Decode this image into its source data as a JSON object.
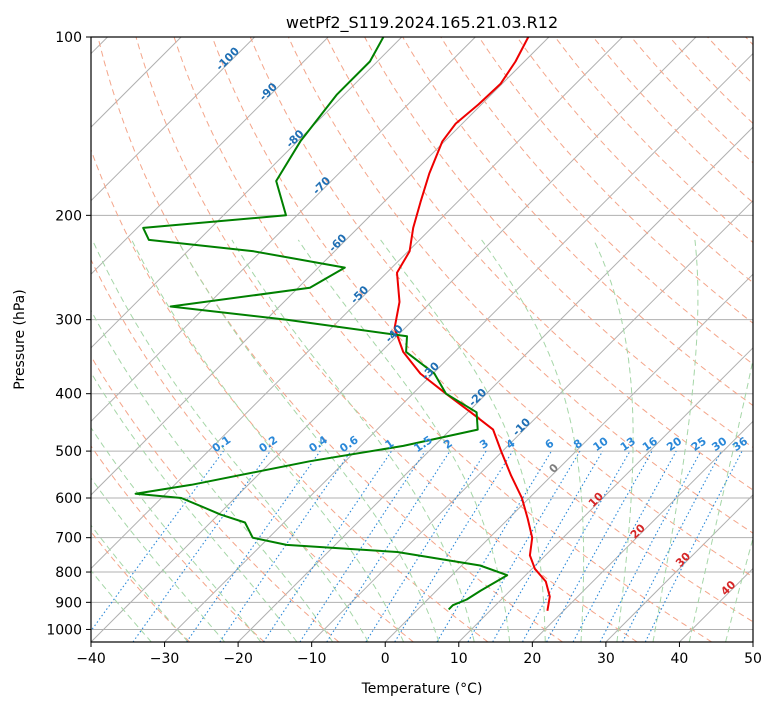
{
  "chart_data": {
    "type": "line",
    "title": "wetPf2_S119.2024.165.21.03.R12",
    "xlabel": "Temperature (°C)",
    "ylabel": "Pressure (hPa)",
    "xlim": [
      -40,
      50
    ],
    "ylim": [
      1050,
      100
    ],
    "y_scale": "log",
    "x_ticks": [
      -40,
      -30,
      -20,
      -10,
      0,
      10,
      20,
      30,
      40,
      50
    ],
    "y_ticks": [
      100,
      200,
      300,
      400,
      500,
      600,
      700,
      800,
      900,
      1000
    ],
    "grid": true,
    "skew": 45,
    "series": [
      {
        "role": "temperature",
        "color": "#ee0000",
        "points": [
          [
            -62.8,
            100
          ],
          [
            -61.2,
            110
          ],
          [
            -60.2,
            120
          ],
          [
            -60.4,
            130
          ],
          [
            -60.9,
            140
          ],
          [
            -60.3,
            150
          ],
          [
            -57.7,
            170
          ],
          [
            -55.0,
            190
          ],
          [
            -52.5,
            210
          ],
          [
            -49.8,
            230
          ],
          [
            -48.6,
            250
          ],
          [
            -44.3,
            280
          ],
          [
            -41.4,
            310
          ],
          [
            -37.0,
            340
          ],
          [
            -31.7,
            370
          ],
          [
            -25.5,
            400
          ],
          [
            -19.6,
            430
          ],
          [
            -14.2,
            460
          ],
          [
            -10.2,
            500
          ],
          [
            -5.5,
            550
          ],
          [
            -1.0,
            600
          ],
          [
            2.6,
            650
          ],
          [
            5.8,
            700
          ],
          [
            7.9,
            750
          ],
          [
            10.4,
            790
          ],
          [
            13.6,
            830
          ],
          [
            16.2,
            880
          ],
          [
            17.8,
            930
          ]
        ]
      },
      {
        "role": "dewpoint",
        "color": "#008000",
        "points": [
          [
            -82.5,
            100
          ],
          [
            -81.0,
            110
          ],
          [
            -81.0,
            125
          ],
          [
            -79.6,
            150
          ],
          [
            -77.5,
            175
          ],
          [
            -71.5,
            200
          ],
          [
            -89.2,
            210
          ],
          [
            -86.8,
            220
          ],
          [
            -71.0,
            230
          ],
          [
            -56.4,
            245
          ],
          [
            -58.4,
            265
          ],
          [
            -74.8,
            285
          ],
          [
            -57.2,
            300
          ],
          [
            -38.6,
            320
          ],
          [
            -36.6,
            340
          ],
          [
            -29.8,
            370
          ],
          [
            -25.5,
            400
          ],
          [
            -18.8,
            430
          ],
          [
            -16.3,
            460
          ],
          [
            -24.2,
            490
          ],
          [
            -34.8,
            520
          ],
          [
            -47.7,
            570
          ],
          [
            -54.1,
            590
          ],
          [
            -47.3,
            600
          ],
          [
            -43.4,
            620
          ],
          [
            -39.7,
            640
          ],
          [
            -35.3,
            660
          ],
          [
            -32.2,
            700
          ],
          [
            -26.6,
            720
          ],
          [
            -10.6,
            740
          ],
          [
            2.5,
            780
          ],
          [
            7.5,
            810
          ],
          [
            6.0,
            860
          ],
          [
            5.3,
            890
          ],
          [
            4.2,
            910
          ],
          [
            4.2,
            925
          ]
        ]
      }
    ],
    "dry_adiabats_C": [
      -30,
      -20,
      -10,
      0,
      10,
      20,
      30,
      40,
      50,
      60,
      70,
      80,
      90,
      100,
      110,
      120,
      130,
      140,
      150,
      160,
      170,
      180,
      190,
      200
    ],
    "moist_adiabats_C": [
      -35,
      -30,
      -25,
      -20,
      -15,
      -10,
      -5,
      0,
      5,
      10,
      15,
      20,
      25,
      30,
      35,
      40,
      45
    ],
    "mixing_ratio_labels": [
      "0.1",
      "0.2",
      "0.4",
      "0.6",
      "1",
      "1.5",
      "2",
      "3",
      "4",
      "6",
      "8",
      "10",
      "13",
      "16",
      "20",
      "25",
      "30",
      "36"
    ],
    "mixing_ratio_values": [
      0.1,
      0.2,
      0.4,
      0.6,
      1,
      1.5,
      2,
      3,
      4,
      6,
      8,
      10,
      13,
      16,
      20,
      25,
      30,
      36
    ],
    "isotherm_labels_cold": [
      "-100",
      "-90",
      "-80",
      "-70",
      "-60",
      "-50",
      "-40",
      "-30",
      "-20",
      "-10"
    ],
    "isotherm_labels_cold_values": [
      -100,
      -90,
      -80,
      -70,
      -60,
      -50,
      -40,
      -30,
      -20,
      -10
    ],
    "isotherm_labels_warm": [
      "0",
      "10",
      "20",
      "30",
      "40"
    ],
    "isotherm_labels_warm_values": [
      0,
      10,
      20,
      30,
      40
    ],
    "colors": {
      "isotherm": "#b0b0b0",
      "dry_adiabat": "#f4a58a",
      "moist_adiabat": "#a5d6a7",
      "mixing_ratio": "#2a88d8",
      "cold_label": "#1f6fb4",
      "warm_label": "#d62728",
      "zero_label": "#7f7f7f",
      "mixing_label": "#2a88d8"
    }
  }
}
